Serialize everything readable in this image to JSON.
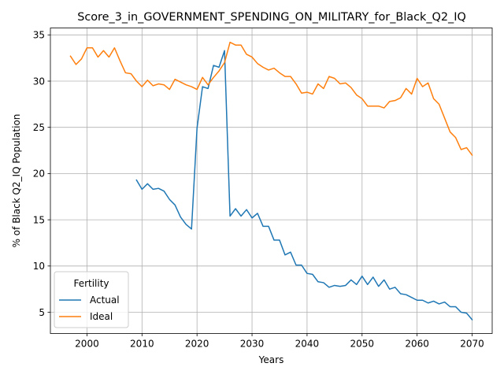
{
  "chart_data": {
    "type": "line",
    "title": "Score_3_in_GOVERNMENT_SPENDING_ON_MILITARY_for_Black_Q2_IQ",
    "xlabel": "Years",
    "ylabel": "% of Black Q2_IQ Population",
    "xlim": [
      1993.35,
      2073.65
    ],
    "ylim": [
      2.7,
      35.75
    ],
    "xticks": [
      2000,
      2010,
      2020,
      2030,
      2040,
      2050,
      2060,
      2070
    ],
    "yticks": [
      5,
      10,
      15,
      20,
      25,
      30,
      35
    ],
    "grid": true,
    "legend": {
      "title": "Fertility",
      "position": "lower-left"
    },
    "series": [
      {
        "name": "Actual",
        "color": "#1f77b4",
        "x": [
          2009,
          2010,
          2011,
          2012,
          2013,
          2014,
          2015,
          2016,
          2017,
          2018,
          2019,
          2020,
          2021,
          2022,
          2023,
          2024,
          2025,
          2026,
          2027,
          2028,
          2029,
          2030,
          2031,
          2032,
          2033,
          2034,
          2035,
          2036,
          2037,
          2038,
          2039,
          2040,
          2041,
          2042,
          2043,
          2044,
          2045,
          2046,
          2047,
          2048,
          2049,
          2050,
          2051,
          2052,
          2053,
          2054,
          2055,
          2056,
          2057,
          2058,
          2059,
          2060,
          2061,
          2062,
          2063,
          2064,
          2065,
          2066,
          2067,
          2068,
          2069,
          2070
        ],
        "values": [
          19.3,
          18.3,
          18.9,
          18.3,
          18.4,
          18.1,
          17.2,
          16.6,
          15.3,
          14.5,
          14.0,
          24.9,
          29.4,
          29.2,
          31.7,
          31.5,
          33.3,
          15.4,
          16.2,
          15.4,
          16.1,
          15.2,
          15.7,
          14.3,
          14.3,
          12.8,
          12.8,
          11.2,
          11.5,
          10.1,
          10.1,
          9.2,
          9.1,
          8.3,
          8.2,
          7.7,
          7.9,
          7.8,
          7.9,
          8.5,
          8.0,
          8.9,
          8.0,
          8.8,
          7.8,
          8.5,
          7.5,
          7.7,
          7.0,
          6.9,
          6.6,
          6.3,
          6.3,
          6.0,
          6.2,
          5.9,
          6.1,
          5.6,
          5.6,
          5.0,
          4.9,
          4.2
        ]
      },
      {
        "name": "Ideal",
        "color": "#ff7f0e",
        "x": [
          1997,
          1998,
          1999,
          2000,
          2001,
          2002,
          2003,
          2004,
          2005,
          2006,
          2007,
          2008,
          2009,
          2010,
          2011,
          2012,
          2013,
          2014,
          2015,
          2016,
          2017,
          2018,
          2019,
          2020,
          2021,
          2022,
          2023,
          2024,
          2025,
          2026,
          2027,
          2028,
          2029,
          2030,
          2031,
          2032,
          2033,
          2034,
          2035,
          2036,
          2037,
          2038,
          2039,
          2040,
          2041,
          2042,
          2043,
          2044,
          2045,
          2046,
          2047,
          2048,
          2049,
          2050,
          2051,
          2052,
          2053,
          2054,
          2055,
          2056,
          2057,
          2058,
          2059,
          2060,
          2061,
          2062,
          2063,
          2064,
          2065,
          2066,
          2067,
          2068,
          2069,
          2070
        ],
        "values": [
          32.7,
          31.8,
          32.4,
          33.6,
          33.6,
          32.6,
          33.3,
          32.6,
          33.6,
          32.2,
          30.9,
          30.8,
          30.0,
          29.4,
          30.1,
          29.5,
          29.7,
          29.6,
          29.1,
          30.2,
          29.9,
          29.6,
          29.4,
          29.1,
          30.4,
          29.6,
          30.4,
          31.1,
          32.0,
          34.2,
          33.9,
          33.9,
          32.9,
          32.6,
          31.9,
          31.5,
          31.2,
          31.4,
          30.9,
          30.5,
          30.5,
          29.7,
          28.7,
          28.8,
          28.6,
          29.7,
          29.2,
          30.5,
          30.3,
          29.7,
          29.8,
          29.3,
          28.5,
          28.1,
          27.3,
          27.3,
          27.3,
          27.1,
          27.8,
          27.9,
          28.2,
          29.2,
          28.6,
          30.3,
          29.4,
          29.8,
          28.1,
          27.5,
          26.0,
          24.5,
          23.9,
          22.6,
          22.8,
          22.0
        ]
      }
    ]
  }
}
